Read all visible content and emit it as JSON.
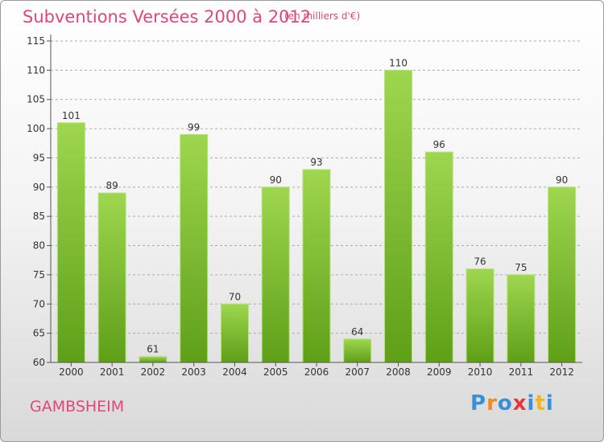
{
  "header": {
    "title": "Subventions Versées 2000 à 2012",
    "subtitle": "(en milliers d'€)"
  },
  "footer": {
    "town": "GAMBSHEIM",
    "logo_letters": [
      {
        "char": "P",
        "color": "#3a8fd6"
      },
      {
        "char": "r",
        "color": "#f08a1c"
      },
      {
        "char": "o",
        "color": "#3a8fd6"
      },
      {
        "char": "x",
        "color": "#e03a3a"
      },
      {
        "char": "i",
        "color": "#3a8fd6"
      },
      {
        "char": "t",
        "color": "#f0b81c"
      },
      {
        "char": "i",
        "color": "#3a8fd6"
      }
    ]
  },
  "chart_data": {
    "type": "bar",
    "title": "Subventions Versées 2000 à 2012",
    "subtitle": "(en milliers d'€)",
    "categories": [
      "2000",
      "2001",
      "2002",
      "2003",
      "2004",
      "2005",
      "2006",
      "2007",
      "2008",
      "2009",
      "2010",
      "2011",
      "2012"
    ],
    "values": [
      101,
      89,
      61,
      99,
      70,
      90,
      93,
      64,
      110,
      96,
      76,
      75,
      90
    ],
    "ylim": [
      60,
      115
    ],
    "yticks": [
      60,
      65,
      70,
      75,
      80,
      85,
      90,
      95,
      100,
      105,
      110,
      115
    ],
    "grid": true,
    "bar_color": "#7cc23a",
    "grid_color": "#aaaaaa"
  }
}
